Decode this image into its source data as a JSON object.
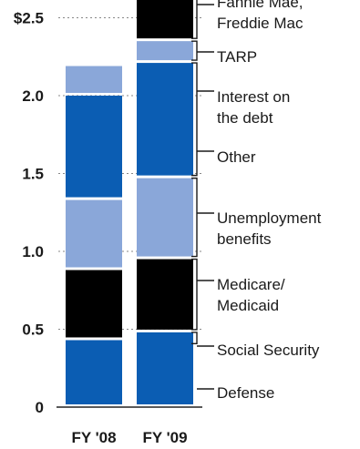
{
  "chart_data": {
    "type": "bar",
    "stacked": true,
    "categories": [
      "FY '08",
      "FY '09"
    ],
    "y_ticks": [
      {
        "value": 0,
        "label": "0"
      },
      {
        "value": 0.5,
        "label": "0.5"
      },
      {
        "value": 1.0,
        "label": "1.0"
      },
      {
        "value": 1.5,
        "label": "1.5"
      },
      {
        "value": 2.0,
        "label": "2.0"
      },
      {
        "value": 2.5,
        "label": "$2.5"
      }
    ],
    "ylim": [
      0,
      2.72
    ],
    "series": [
      {
        "name": "Defense",
        "color": "#0b5db3",
        "values": [
          0.43,
          0.48
        ]
      },
      {
        "name": "Social Security",
        "color": "#000000",
        "values": [
          0.45,
          0.47
        ]
      },
      {
        "name": "Medicare/ Medicaid",
        "color": "#000000",
        "values": [
          0.0,
          0.0
        ]
      },
      {
        "name": "Unemployment benefits",
        "color": "#8aa7d9",
        "values": [
          0.45,
          0.52
        ]
      },
      {
        "name": "Other",
        "color": "#0b5db3",
        "values": [
          0.67,
          0.74
        ]
      },
      {
        "name": "Interest on the debt",
        "color": "#0b5db3",
        "values": [
          0.0,
          0.0
        ]
      },
      {
        "name": "TARP",
        "color": "#8aa7d9",
        "values": [
          0.19,
          0.14
        ]
      },
      {
        "name": "Fannie Mae, Freddie Mac",
        "color": "#000000",
        "values": [
          0.0,
          0.32
        ]
      }
    ],
    "annotations": [
      {
        "lines": [
          "Fannie Mae,",
          "Freddie Mac"
        ]
      },
      {
        "lines": [
          "TARP"
        ]
      },
      {
        "lines": [
          "Interest on",
          "the debt"
        ]
      },
      {
        "lines": [
          "Other"
        ]
      },
      {
        "lines": [
          "Unemployment",
          "benefits"
        ]
      },
      {
        "lines": [
          "Medicare/",
          "Medicaid"
        ]
      },
      {
        "lines": [
          "Social Security"
        ]
      },
      {
        "lines": [
          "Defense"
        ]
      }
    ]
  }
}
